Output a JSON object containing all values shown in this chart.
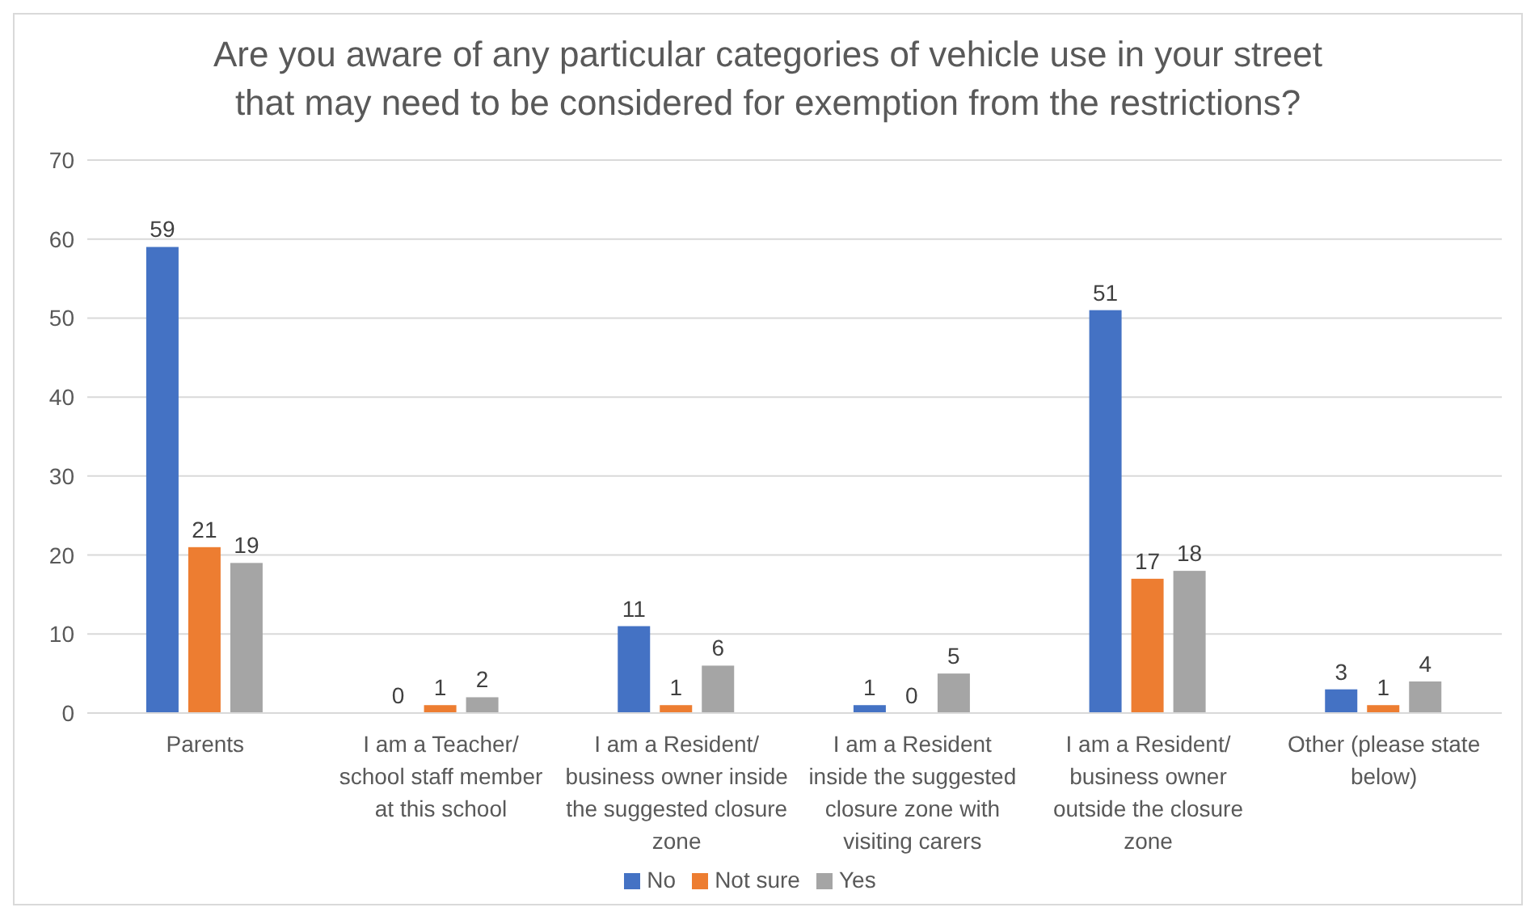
{
  "chart_data": {
    "type": "bar",
    "title": "Are you aware of any particular categories of vehicle use in your street that may need to be considered for exemption from the restrictions?",
    "categories": [
      "Parents",
      "I am a Teacher/ school staff member at this school",
      "I am a Resident/ business owner inside the suggested closure zone",
      "I am a Resident inside the suggested closure zone with visiting carers",
      "I am a Resident/ business owner outside the closure zone",
      "Other (please state below)"
    ],
    "series": [
      {
        "name": "No",
        "color": "#4472c4",
        "values": [
          59,
          0,
          11,
          1,
          51,
          3
        ]
      },
      {
        "name": "Not sure",
        "color": "#ed7d31",
        "values": [
          21,
          1,
          1,
          0,
          17,
          1
        ]
      },
      {
        "name": "Yes",
        "color": "#a5a5a5",
        "values": [
          19,
          2,
          6,
          5,
          18,
          4
        ]
      }
    ],
    "ylim": [
      0,
      70
    ],
    "yticks": [
      0,
      10,
      20,
      30,
      40,
      50,
      60,
      70
    ],
    "grid": "y",
    "legend": "bottom",
    "data_labels": true
  }
}
